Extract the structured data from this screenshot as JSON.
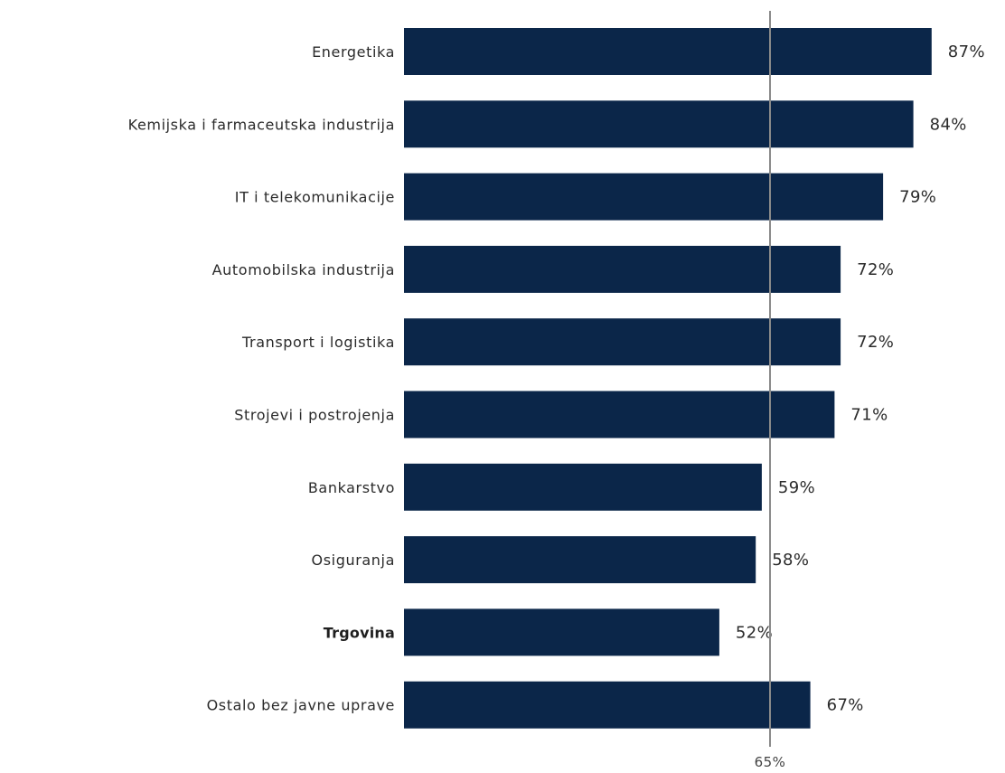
{
  "chart_data": {
    "type": "bar",
    "orientation": "horizontal",
    "categories": [
      "Energetika",
      "Kemijska  i farmaceutska  industrija",
      "IT i telekomunikacije",
      "Automobilska industrija",
      "Transport i logistika",
      "Strojevi i postrojenja",
      "Bankarstvo",
      "Osiguranja",
      "Trgovina",
      "Ostalo bez javne uprave"
    ],
    "values": [
      87,
      84,
      79,
      72,
      72,
      71,
      59,
      58,
      52,
      67
    ],
    "value_labels": [
      "87%",
      "84%",
      "79%",
      "72%",
      "72%",
      "71%",
      "59%",
      "58%",
      "52%",
      "67%"
    ],
    "bold_categories": [
      "Trgovina"
    ],
    "reference_line": {
      "value": 65,
      "label": "65%"
    },
    "bar_color": "#0b2649",
    "reference_line_color": "#8a8a8a",
    "grid": false,
    "legend": "none",
    "title": "",
    "xlabel": "",
    "ylabel": ""
  }
}
